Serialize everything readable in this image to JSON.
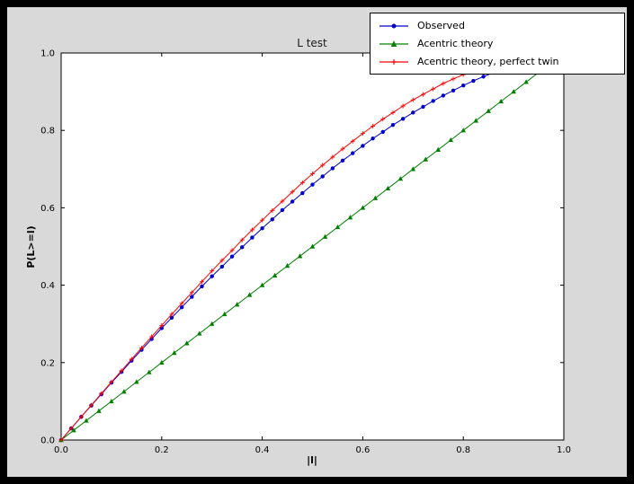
{
  "window": {
    "background": "#000000",
    "figure_background": "#d9d9d9",
    "axes_background": "#ffffff",
    "axes_edge_color": "#000000"
  },
  "chart_data": {
    "type": "line",
    "title": "L test",
    "xlabel": "|l|",
    "ylabel": "P(L>=l)",
    "xlim": [
      0.0,
      1.0
    ],
    "ylim": [
      0.0,
      1.0
    ],
    "grid": false,
    "legend_position": "upper right",
    "x_ticks": [
      0.0,
      0.2,
      0.4,
      0.6,
      0.8,
      1.0
    ],
    "x_tick_labels": [
      "0.0",
      "0.2",
      "0.4",
      "0.6",
      "0.8",
      "1.0"
    ],
    "y_ticks": [
      0.0,
      0.2,
      0.4,
      0.6,
      0.8,
      1.0
    ],
    "y_tick_labels": [
      "0.0",
      "0.2",
      "0.4",
      "0.6",
      "0.8",
      "1.0"
    ],
    "series": [
      {
        "name": "Observed",
        "color": "#0000cd",
        "marker": "circle",
        "points": [
          [
            0,
            0
          ],
          [
            0.02,
            0.03
          ],
          [
            0.04,
            0.06
          ],
          [
            0.06,
            0.089
          ],
          [
            0.08,
            0.118
          ],
          [
            0.1,
            0.148
          ],
          [
            0.12,
            0.176
          ],
          [
            0.14,
            0.205
          ],
          [
            0.16,
            0.233
          ],
          [
            0.18,
            0.261
          ],
          [
            0.2,
            0.289
          ],
          [
            0.22,
            0.316
          ],
          [
            0.24,
            0.343
          ],
          [
            0.26,
            0.37
          ],
          [
            0.28,
            0.397
          ],
          [
            0.3,
            0.423
          ],
          [
            0.32,
            0.448
          ],
          [
            0.34,
            0.474
          ],
          [
            0.36,
            0.498
          ],
          [
            0.38,
            0.523
          ],
          [
            0.4,
            0.547
          ],
          [
            0.42,
            0.57
          ],
          [
            0.44,
            0.594
          ],
          [
            0.46,
            0.616
          ],
          [
            0.48,
            0.638
          ],
          [
            0.5,
            0.66
          ],
          [
            0.52,
            0.681
          ],
          [
            0.54,
            0.702
          ],
          [
            0.56,
            0.722
          ],
          [
            0.58,
            0.741
          ],
          [
            0.6,
            0.76
          ],
          [
            0.62,
            0.779
          ],
          [
            0.64,
            0.796
          ],
          [
            0.66,
            0.814
          ],
          [
            0.68,
            0.83
          ],
          [
            0.7,
            0.846
          ],
          [
            0.72,
            0.861
          ],
          [
            0.74,
            0.876
          ],
          [
            0.76,
            0.89
          ],
          [
            0.78,
            0.903
          ],
          [
            0.8,
            0.916
          ],
          [
            0.82,
            0.928
          ],
          [
            0.84,
            0.939
          ],
          [
            0.86,
            0.949
          ]
        ]
      },
      {
        "name": "Acentric theory",
        "color": "#008000",
        "marker": "triangle_up",
        "points": [
          [
            0,
            0
          ],
          [
            0.025,
            0.025
          ],
          [
            0.05,
            0.05
          ],
          [
            0.075,
            0.075
          ],
          [
            0.1,
            0.1
          ],
          [
            0.125,
            0.125
          ],
          [
            0.15,
            0.15
          ],
          [
            0.175,
            0.175
          ],
          [
            0.2,
            0.2
          ],
          [
            0.225,
            0.225
          ],
          [
            0.25,
            0.25
          ],
          [
            0.275,
            0.275
          ],
          [
            0.3,
            0.3
          ],
          [
            0.325,
            0.325
          ],
          [
            0.35,
            0.35
          ],
          [
            0.375,
            0.375
          ],
          [
            0.4,
            0.4
          ],
          [
            0.425,
            0.425
          ],
          [
            0.45,
            0.45
          ],
          [
            0.475,
            0.475
          ],
          [
            0.5,
            0.5
          ],
          [
            0.525,
            0.525
          ],
          [
            0.55,
            0.55
          ],
          [
            0.575,
            0.575
          ],
          [
            0.6,
            0.6
          ],
          [
            0.625,
            0.625
          ],
          [
            0.65,
            0.65
          ],
          [
            0.675,
            0.675
          ],
          [
            0.7,
            0.7
          ],
          [
            0.725,
            0.725
          ],
          [
            0.75,
            0.75
          ],
          [
            0.775,
            0.775
          ],
          [
            0.8,
            0.8
          ],
          [
            0.825,
            0.825
          ],
          [
            0.85,
            0.85
          ],
          [
            0.875,
            0.875
          ],
          [
            0.9,
            0.9
          ],
          [
            0.925,
            0.925
          ],
          [
            0.95,
            0.95
          ]
        ]
      },
      {
        "name": "Acentric theory, perfect twin",
        "color": "#ff0000",
        "marker": "plus",
        "points": [
          [
            0,
            0
          ],
          [
            0.02,
            0.03
          ],
          [
            0.04,
            0.06
          ],
          [
            0.06,
            0.09
          ],
          [
            0.08,
            0.12
          ],
          [
            0.1,
            0.15
          ],
          [
            0.12,
            0.179
          ],
          [
            0.14,
            0.209
          ],
          [
            0.16,
            0.238
          ],
          [
            0.18,
            0.267
          ],
          [
            0.2,
            0.296
          ],
          [
            0.22,
            0.325
          ],
          [
            0.24,
            0.353
          ],
          [
            0.26,
            0.381
          ],
          [
            0.28,
            0.409
          ],
          [
            0.3,
            0.437
          ],
          [
            0.32,
            0.464
          ],
          [
            0.34,
            0.49
          ],
          [
            0.36,
            0.517
          ],
          [
            0.38,
            0.543
          ],
          [
            0.4,
            0.568
          ],
          [
            0.42,
            0.593
          ],
          [
            0.44,
            0.617
          ],
          [
            0.46,
            0.641
          ],
          [
            0.48,
            0.665
          ],
          [
            0.5,
            0.688
          ],
          [
            0.52,
            0.71
          ],
          [
            0.54,
            0.731
          ],
          [
            0.56,
            0.752
          ],
          [
            0.58,
            0.772
          ],
          [
            0.6,
            0.792
          ],
          [
            0.62,
            0.811
          ],
          [
            0.64,
            0.829
          ],
          [
            0.66,
            0.846
          ],
          [
            0.68,
            0.863
          ],
          [
            0.7,
            0.879
          ],
          [
            0.72,
            0.893
          ],
          [
            0.74,
            0.907
          ],
          [
            0.76,
            0.921
          ],
          [
            0.78,
            0.933
          ],
          [
            0.8,
            0.944
          ],
          [
            0.82,
            0.954
          ],
          [
            0.84,
            0.964
          ]
        ]
      }
    ]
  }
}
